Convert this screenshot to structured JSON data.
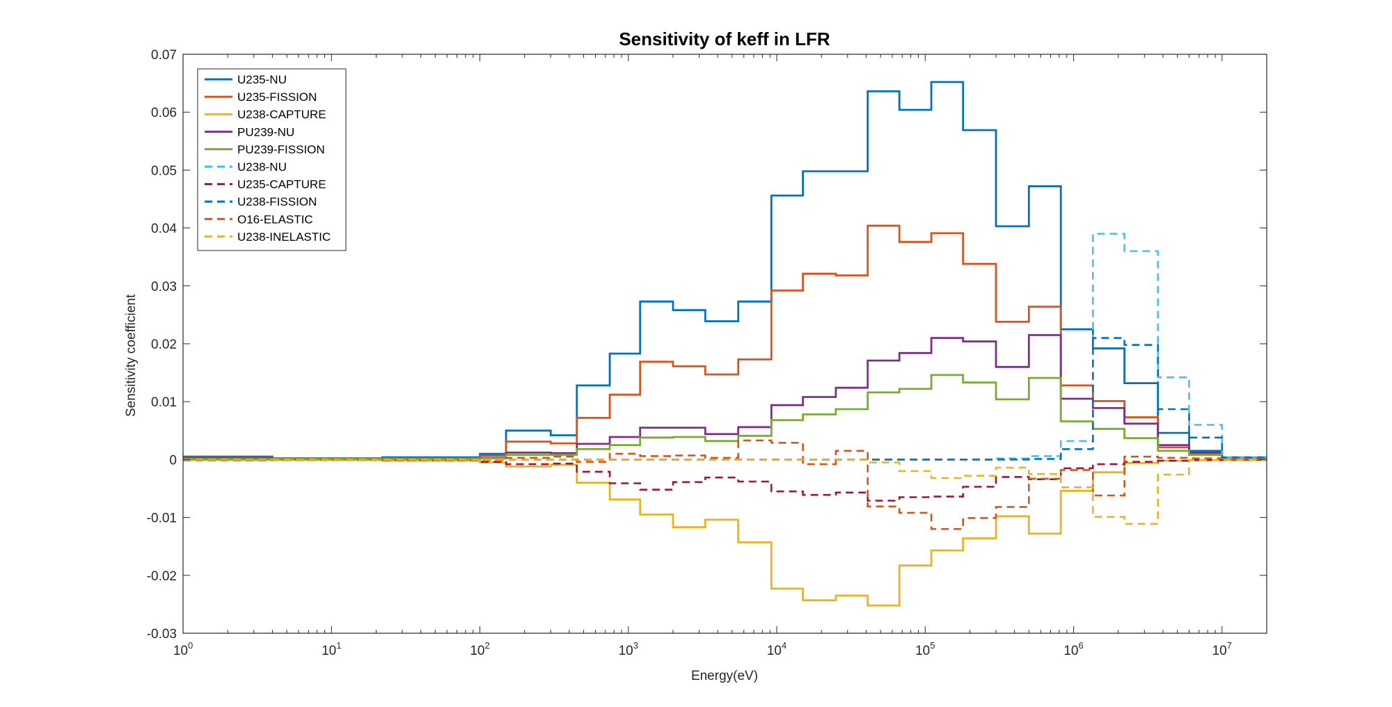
{
  "chart_data": {
    "type": "line",
    "title": "Sensitivity of keff in LFR",
    "xlabel": "Energy(eV)",
    "ylabel": "Sensitivity coefficient",
    "xscale": "log",
    "xlim": [
      1,
      20000000
    ],
    "ylim": [
      -0.03,
      0.07
    ],
    "grid": false,
    "legend_position": "top-left",
    "x_ticks": [
      {
        "value": 1,
        "base": "10",
        "exp": "0"
      },
      {
        "value": 10,
        "base": "10",
        "exp": "1"
      },
      {
        "value": 100,
        "base": "10",
        "exp": "2"
      },
      {
        "value": 1000,
        "base": "10",
        "exp": "3"
      },
      {
        "value": 10000,
        "base": "10",
        "exp": "4"
      },
      {
        "value": 100000,
        "base": "10",
        "exp": "5"
      },
      {
        "value": 1000000,
        "base": "10",
        "exp": "6"
      },
      {
        "value": 10000000,
        "base": "10",
        "exp": "7"
      }
    ],
    "y_ticks": [
      {
        "value": 0.07,
        "label": "0.07"
      },
      {
        "value": 0.06,
        "label": "0.06"
      },
      {
        "value": 0.05,
        "label": "0.05"
      },
      {
        "value": 0.04,
        "label": "0.04"
      },
      {
        "value": 0.03,
        "label": "0.03"
      },
      {
        "value": 0.02,
        "label": "0.02"
      },
      {
        "value": 0.01,
        "label": "0.01"
      },
      {
        "value": 0,
        "label": "0"
      },
      {
        "value": -0.01,
        "label": "-0.01"
      },
      {
        "value": -0.02,
        "label": "-0.02"
      },
      {
        "value": -0.03,
        "label": "-0.03"
      }
    ],
    "x_edges": [
      1,
      4,
      22,
      100,
      150,
      300,
      450,
      750,
      1200,
      2000,
      3300,
      5500,
      9200,
      15000,
      25000,
      41000,
      67000,
      110000,
      180000,
      300000,
      500000,
      820000,
      1350000,
      2200000,
      3700000,
      6000000,
      10000000,
      20000000
    ],
    "series": [
      {
        "name": "U235-NU",
        "color": "#0072BD",
        "dashed": false,
        "values": [
          0.0005,
          0.0002,
          0.0004,
          0.001,
          0.005,
          0.0042,
          0.0128,
          0.0183,
          0.0273,
          0.0258,
          0.0239,
          0.0273,
          0.0456,
          0.0498,
          0.0498,
          0.0636,
          0.0604,
          0.0652,
          0.0569,
          0.0403,
          0.0472,
          0.0225,
          0.0192,
          0.0132,
          0.0046,
          0.0015,
          0.0004
        ]
      },
      {
        "name": "U235-FISSION",
        "color": "#D95319",
        "dashed": false,
        "values": [
          0.0003,
          0.0001,
          0.0002,
          0.0007,
          0.0031,
          0.0028,
          0.0072,
          0.0112,
          0.0169,
          0.0161,
          0.0147,
          0.0173,
          0.0292,
          0.0321,
          0.0318,
          0.0404,
          0.0376,
          0.0391,
          0.0338,
          0.0238,
          0.0264,
          0.0128,
          0.0101,
          0.0073,
          0.0021,
          0.0009,
          0.0002
        ]
      },
      {
        "name": "U238-CAPTURE",
        "color": "#EDB120",
        "dashed": false,
        "values": [
          -0.0001,
          -0.0001,
          -0.0002,
          -0.0005,
          -0.0012,
          -0.0009,
          -0.004,
          -0.0069,
          -0.0095,
          -0.0117,
          -0.0104,
          -0.0143,
          -0.0223,
          -0.0243,
          -0.0235,
          -0.0252,
          -0.0183,
          -0.0157,
          -0.0136,
          -0.0098,
          -0.0128,
          -0.0054,
          -0.0022,
          -0.0006,
          -0.0002,
          -0.0001,
          -0.0001
        ]
      },
      {
        "name": "PU239-NU",
        "color": "#7E2F8E",
        "dashed": false,
        "values": [
          0.0002,
          0.0001,
          0.0001,
          0.0003,
          0.0012,
          0.0011,
          0.0027,
          0.0039,
          0.0055,
          0.0055,
          0.0044,
          0.0056,
          0.0094,
          0.0108,
          0.0124,
          0.0171,
          0.0184,
          0.021,
          0.0204,
          0.016,
          0.0215,
          0.0105,
          0.0089,
          0.0062,
          0.0025,
          0.0012,
          0.0003
        ]
      },
      {
        "name": "PU239-FISSION",
        "color": "#77AC30",
        "dashed": false,
        "values": [
          0.0001,
          0.0001,
          0.0001,
          0.0002,
          0.0008,
          0.0008,
          0.0018,
          0.0025,
          0.0038,
          0.0039,
          0.0032,
          0.0041,
          0.0068,
          0.0078,
          0.0087,
          0.0116,
          0.0122,
          0.0146,
          0.0133,
          0.0104,
          0.0141,
          0.0066,
          0.0053,
          0.0037,
          0.0015,
          0.0008,
          0.0002
        ]
      },
      {
        "name": "U238-NU",
        "color": "#4DBEEE",
        "dashed": true,
        "values": [
          0,
          0,
          0,
          0,
          0,
          0,
          0,
          0,
          0,
          0,
          0,
          0,
          0,
          0,
          0,
          0,
          0,
          0,
          0,
          0.0002,
          0.0006,
          0.0032,
          0.039,
          0.036,
          0.0142,
          0.006,
          0.0004
        ]
      },
      {
        "name": "U235-CAPTURE",
        "color": "#A2142F",
        "dashed": true,
        "values": [
          -0.0001,
          0,
          -0.0001,
          -0.0004,
          -0.0008,
          -0.0007,
          -0.0021,
          -0.0041,
          -0.0052,
          -0.0039,
          -0.0031,
          -0.0038,
          -0.0055,
          -0.0061,
          -0.0057,
          -0.0071,
          -0.0065,
          -0.0064,
          -0.0047,
          -0.003,
          -0.0034,
          -0.0015,
          -0.0008,
          -0.0004,
          -0.0002,
          -0.0001,
          0
        ]
      },
      {
        "name": "U238-FISSION",
        "color": "#0072BD",
        "dashed": true,
        "values": [
          0,
          0,
          0,
          0,
          0,
          0,
          0,
          0,
          0,
          0,
          0,
          0,
          0,
          0,
          0,
          0,
          0,
          0,
          0,
          0,
          0.0001,
          0.0018,
          0.021,
          0.0198,
          0.0087,
          0.0038,
          0.0003
        ]
      },
      {
        "name": "O16-ELASTIC",
        "color": "#D95319",
        "dashed": true,
        "values": [
          0,
          0,
          -0.0001,
          -0.0002,
          0.0003,
          0.0005,
          -0.0004,
          0.001,
          0.0006,
          0.0007,
          0.0003,
          0.0033,
          0.0029,
          -0.0008,
          0.0015,
          -0.0081,
          -0.0092,
          -0.012,
          -0.0101,
          -0.0082,
          -0.0033,
          -0.0018,
          -0.0062,
          0.0005,
          0.0003,
          0.0002,
          0.0001
        ]
      },
      {
        "name": "U238-INELASTIC",
        "color": "#EDB120",
        "dashed": true,
        "values": [
          0,
          0,
          0,
          0,
          0,
          0,
          0,
          0,
          0,
          0,
          0,
          0,
          0,
          0,
          0,
          -0.0005,
          -0.002,
          -0.0032,
          -0.0028,
          -0.0014,
          -0.0025,
          -0.0048,
          -0.0099,
          -0.0111,
          -0.0026,
          -0.0001,
          0
        ]
      }
    ]
  }
}
